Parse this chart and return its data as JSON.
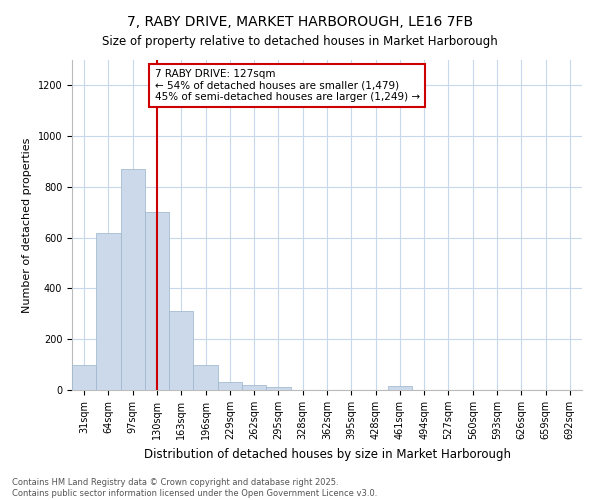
{
  "title": "7, RABY DRIVE, MARKET HARBOROUGH, LE16 7FB",
  "subtitle": "Size of property relative to detached houses in Market Harborough",
  "xlabel": "Distribution of detached houses by size in Market Harborough",
  "ylabel": "Number of detached properties",
  "bar_color": "#ccd9ea",
  "bar_edge_color": "#9ab3cc",
  "background_color": "#ffffff",
  "plot_bg_color": "#ffffff",
  "categories": [
    "31sqm",
    "64sqm",
    "97sqm",
    "130sqm",
    "163sqm",
    "196sqm",
    "229sqm",
    "262sqm",
    "295sqm",
    "328sqm",
    "362sqm",
    "395sqm",
    "428sqm",
    "461sqm",
    "494sqm",
    "527sqm",
    "560sqm",
    "593sqm",
    "626sqm",
    "659sqm",
    "692sqm"
  ],
  "values": [
    100,
    620,
    870,
    700,
    310,
    100,
    30,
    20,
    10,
    0,
    0,
    0,
    0,
    15,
    0,
    0,
    0,
    0,
    0,
    0,
    0
  ],
  "property_line_x": 3.0,
  "annotation_line1": "7 RABY DRIVE: 127sqm",
  "annotation_line2": "← 54% of detached houses are smaller (1,479)",
  "annotation_line3": "45% of semi-detached houses are larger (1,249) →",
  "annotation_box_color": "#ffffff",
  "annotation_border_color": "#cc0000",
  "vline_color": "#cc0000",
  "footer_text": "Contains HM Land Registry data © Crown copyright and database right 2025.\nContains public sector information licensed under the Open Government Licence v3.0.",
  "ylim": [
    0,
    1300
  ],
  "yticks": [
    0,
    200,
    400,
    600,
    800,
    1000,
    1200
  ],
  "grid_color": "#c8d8ec",
  "title_fontsize": 10,
  "subtitle_fontsize": 8.5,
  "ylabel_fontsize": 8,
  "xlabel_fontsize": 8.5,
  "tick_fontsize": 7,
  "annotation_fontsize": 7.5,
  "footer_fontsize": 6
}
